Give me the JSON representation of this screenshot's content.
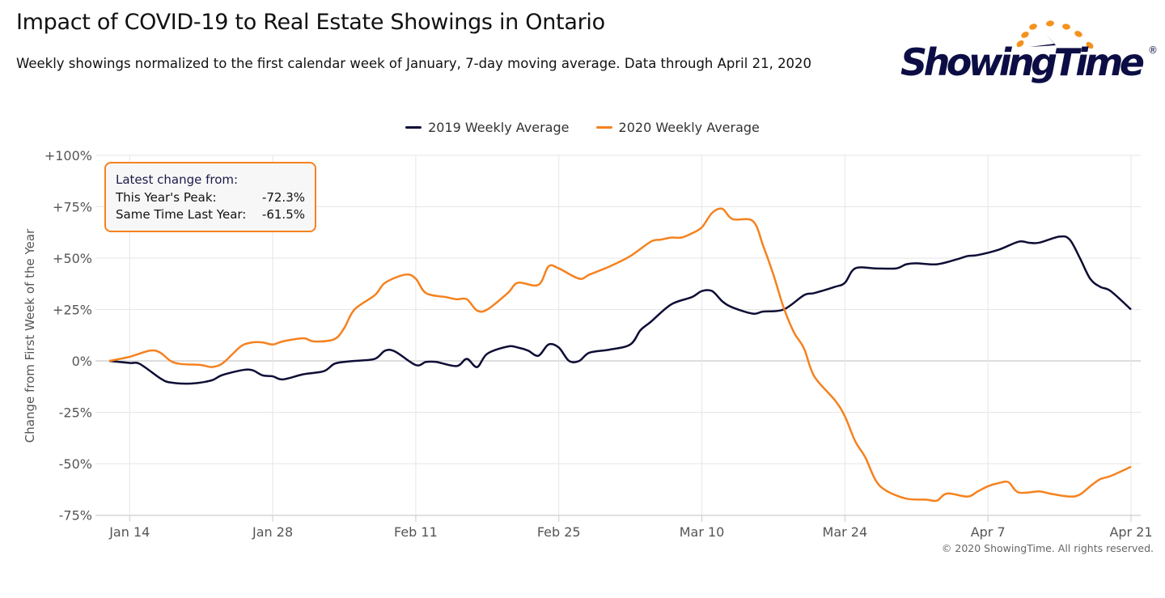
{
  "title": "Impact of COVID-19 to Real Estate Showings in Ontario",
  "subtitle": "Weekly showings normalized to the first calendar week of January, 7-day moving average. Data through April 21, 2020",
  "logo": {
    "text": "ShowingTime",
    "mark": "®",
    "colors": {
      "text": "#0d0d45",
      "dots": "#f5921e"
    }
  },
  "copyright": "© 2020 ShowingTime. All rights reserved.",
  "info_box": {
    "heading": "Latest change from:",
    "rows": [
      {
        "label": "This Year's Peak:",
        "value": "-72.3%"
      },
      {
        "label": "Same Time Last Year:",
        "value": "-61.5%"
      }
    ]
  },
  "chart_data": {
    "type": "line",
    "ylabel": "Change from First Week of the Year",
    "xlabel": "",
    "ylim": [
      -75,
      100
    ],
    "yticks": [
      100,
      75,
      50,
      25,
      0,
      -25,
      -50,
      -75
    ],
    "ytick_labels": [
      "+100%",
      "+75%",
      "+50%",
      "+25%",
      "0%",
      "-25%",
      "-50%",
      "-75%"
    ],
    "xlim": [
      "2020-01-12",
      "2020-04-21"
    ],
    "xticks": [
      "2020-01-14",
      "2020-01-28",
      "2020-02-11",
      "2020-02-25",
      "2020-03-10",
      "2020-03-24",
      "2020-04-07",
      "2020-04-21"
    ],
    "xtick_labels": [
      "Jan 14",
      "Jan 28",
      "Feb 11",
      "Feb 25",
      "Mar 10",
      "Mar 24",
      "Apr 7",
      "Apr 21"
    ],
    "grid": true,
    "legend_position": "top-center",
    "series": [
      {
        "name": "2019 Weekly Average",
        "color": "#0d0d35",
        "points": [
          [
            "2020-01-12",
            0
          ],
          [
            "2020-01-14",
            -1
          ],
          [
            "2020-01-15",
            -1.5
          ],
          [
            "2020-01-17",
            -8.5
          ],
          [
            "2020-01-18",
            -10.5
          ],
          [
            "2020-01-20",
            -11
          ],
          [
            "2020-01-22",
            -9.5
          ],
          [
            "2020-01-23",
            -7
          ],
          [
            "2020-01-25",
            -4.5
          ],
          [
            "2020-01-26",
            -4.5
          ],
          [
            "2020-01-27",
            -7
          ],
          [
            "2020-01-28",
            -7.5
          ],
          [
            "2020-01-29",
            -9
          ],
          [
            "2020-01-31",
            -6.5
          ],
          [
            "2020-02-02",
            -5
          ],
          [
            "2020-02-03",
            -1.5
          ],
          [
            "2020-02-04",
            -0.5
          ],
          [
            "2020-02-05",
            0
          ],
          [
            "2020-02-07",
            1
          ],
          [
            "2020-02-08",
            5
          ],
          [
            "2020-02-09",
            4.5
          ],
          [
            "2020-02-11",
            -2
          ],
          [
            "2020-02-12",
            -0.5
          ],
          [
            "2020-02-13",
            -0.5
          ],
          [
            "2020-02-15",
            -2.5
          ],
          [
            "2020-02-16",
            1
          ],
          [
            "2020-02-17",
            -3
          ],
          [
            "2020-02-18",
            3.5
          ],
          [
            "2020-02-20",
            7
          ],
          [
            "2020-02-21",
            6.5
          ],
          [
            "2020-02-22",
            5
          ],
          [
            "2020-02-23",
            2.5
          ],
          [
            "2020-02-24",
            8
          ],
          [
            "2020-02-25",
            6.5
          ],
          [
            "2020-02-26",
            0
          ],
          [
            "2020-02-27",
            0
          ],
          [
            "2020-02-28",
            4
          ],
          [
            "2020-03-01",
            5.5
          ],
          [
            "2020-03-03",
            8
          ],
          [
            "2020-03-04",
            15
          ],
          [
            "2020-03-05",
            19
          ],
          [
            "2020-03-07",
            27.5
          ],
          [
            "2020-03-09",
            31
          ],
          [
            "2020-03-10",
            34
          ],
          [
            "2020-03-11",
            34
          ],
          [
            "2020-03-12",
            29
          ],
          [
            "2020-03-13",
            26
          ],
          [
            "2020-03-15",
            23
          ],
          [
            "2020-03-16",
            24
          ],
          [
            "2020-03-18",
            25
          ],
          [
            "2020-03-20",
            32
          ],
          [
            "2020-03-21",
            33
          ],
          [
            "2020-03-23",
            36
          ],
          [
            "2020-03-24",
            38
          ],
          [
            "2020-03-25",
            45
          ],
          [
            "2020-03-27",
            45
          ],
          [
            "2020-03-29",
            45
          ],
          [
            "2020-03-30",
            47
          ],
          [
            "2020-03-31",
            47.5
          ],
          [
            "2020-04-02",
            47
          ],
          [
            "2020-04-04",
            49.5
          ],
          [
            "2020-04-05",
            51
          ],
          [
            "2020-04-06",
            51.5
          ],
          [
            "2020-04-08",
            54
          ],
          [
            "2020-04-10",
            58
          ],
          [
            "2020-04-11",
            57.5
          ],
          [
            "2020-04-12",
            57.5
          ],
          [
            "2020-04-14",
            60.5
          ],
          [
            "2020-04-15",
            59
          ],
          [
            "2020-04-16",
            50
          ],
          [
            "2020-04-17",
            40
          ],
          [
            "2020-04-18",
            36
          ],
          [
            "2020-04-19",
            34
          ],
          [
            "2020-04-21",
            25
          ]
        ]
      },
      {
        "name": "2020 Weekly Average",
        "color": "#f5821f",
        "points": [
          [
            "2020-01-12",
            0
          ],
          [
            "2020-01-14",
            2
          ],
          [
            "2020-01-16",
            5
          ],
          [
            "2020-01-17",
            4
          ],
          [
            "2020-01-18",
            0
          ],
          [
            "2020-01-19",
            -1.5
          ],
          [
            "2020-01-21",
            -2
          ],
          [
            "2020-01-22",
            -3
          ],
          [
            "2020-01-23",
            -1.5
          ],
          [
            "2020-01-24",
            3
          ],
          [
            "2020-01-25",
            7.5
          ],
          [
            "2020-01-26",
            9
          ],
          [
            "2020-01-27",
            9
          ],
          [
            "2020-01-28",
            8
          ],
          [
            "2020-01-29",
            9.5
          ],
          [
            "2020-01-31",
            11
          ],
          [
            "2020-02-01",
            9.5
          ],
          [
            "2020-02-03",
            10.5
          ],
          [
            "2020-02-04",
            16
          ],
          [
            "2020-02-05",
            25
          ],
          [
            "2020-02-07",
            32
          ],
          [
            "2020-02-08",
            38
          ],
          [
            "2020-02-10",
            42
          ],
          [
            "2020-02-11",
            40
          ],
          [
            "2020-02-12",
            33
          ],
          [
            "2020-02-14",
            31
          ],
          [
            "2020-02-15",
            30
          ],
          [
            "2020-02-16",
            30
          ],
          [
            "2020-02-17",
            24.5
          ],
          [
            "2020-02-18",
            25
          ],
          [
            "2020-02-20",
            33
          ],
          [
            "2020-02-21",
            38
          ],
          [
            "2020-02-23",
            37
          ],
          [
            "2020-02-24",
            46
          ],
          [
            "2020-02-25",
            45
          ],
          [
            "2020-02-27",
            40
          ],
          [
            "2020-02-28",
            42
          ],
          [
            "2020-03-01",
            46
          ],
          [
            "2020-03-03",
            51
          ],
          [
            "2020-03-05",
            58
          ],
          [
            "2020-03-06",
            59
          ],
          [
            "2020-03-07",
            60
          ],
          [
            "2020-03-08",
            60
          ],
          [
            "2020-03-09",
            62
          ],
          [
            "2020-03-10",
            65
          ],
          [
            "2020-03-11",
            72
          ],
          [
            "2020-03-12",
            74
          ],
          [
            "2020-03-13",
            69
          ],
          [
            "2020-03-15",
            68
          ],
          [
            "2020-03-16",
            56
          ],
          [
            "2020-03-17",
            42
          ],
          [
            "2020-03-18",
            26
          ],
          [
            "2020-03-19",
            14
          ],
          [
            "2020-03-20",
            6
          ],
          [
            "2020-03-21",
            -7.5
          ],
          [
            "2020-03-23",
            -19
          ],
          [
            "2020-03-24",
            -27
          ],
          [
            "2020-03-25",
            -39
          ],
          [
            "2020-03-26",
            -47
          ],
          [
            "2020-03-27",
            -58
          ],
          [
            "2020-03-28",
            -63
          ],
          [
            "2020-03-30",
            -67
          ],
          [
            "2020-04-01",
            -67.5
          ],
          [
            "2020-04-02",
            -68
          ],
          [
            "2020-04-03",
            -64.5
          ],
          [
            "2020-04-05",
            -66
          ],
          [
            "2020-04-06",
            -63.5
          ],
          [
            "2020-04-07",
            -61
          ],
          [
            "2020-04-08",
            -59.5
          ],
          [
            "2020-04-09",
            -59
          ],
          [
            "2020-04-10",
            -64
          ],
          [
            "2020-04-12",
            -63.5
          ],
          [
            "2020-04-13",
            -64.5
          ],
          [
            "2020-04-15",
            -66
          ],
          [
            "2020-04-16",
            -65
          ],
          [
            "2020-04-17",
            -61
          ],
          [
            "2020-04-18",
            -57.5
          ],
          [
            "2020-04-19",
            -56
          ],
          [
            "2020-04-21",
            -51.5
          ]
        ]
      }
    ]
  }
}
